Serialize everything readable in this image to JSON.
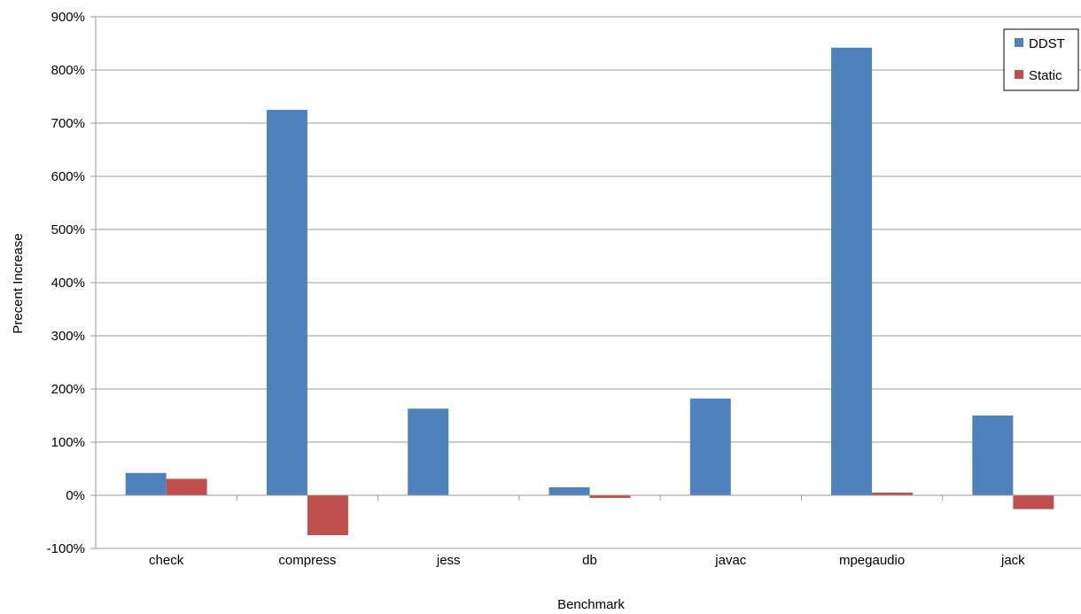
{
  "chart_data": {
    "type": "bar",
    "title": "",
    "xlabel": "Benchmark",
    "ylabel": "Precent Increase",
    "categories": [
      "check",
      "compress",
      "jess",
      "db",
      "javac",
      "mpegaudio",
      "jack"
    ],
    "series": [
      {
        "name": "DDST",
        "color": "#4f81bd",
        "values": [
          42,
          725,
          163,
          15,
          182,
          842,
          150
        ]
      },
      {
        "name": "Static",
        "color": "#c0504d",
        "values": [
          31,
          -75,
          0,
          -5,
          0,
          5,
          -26
        ]
      }
    ],
    "ylim": [
      -100,
      900
    ],
    "yticks": [
      -100,
      0,
      100,
      200,
      300,
      400,
      500,
      600,
      700,
      800,
      900
    ],
    "ytick_labels": [
      "-100%",
      "0%",
      "100%",
      "200%",
      "300%",
      "400%",
      "500%",
      "600%",
      "700%",
      "800%",
      "900%"
    ],
    "grid": true,
    "legend_position": "top-right"
  }
}
